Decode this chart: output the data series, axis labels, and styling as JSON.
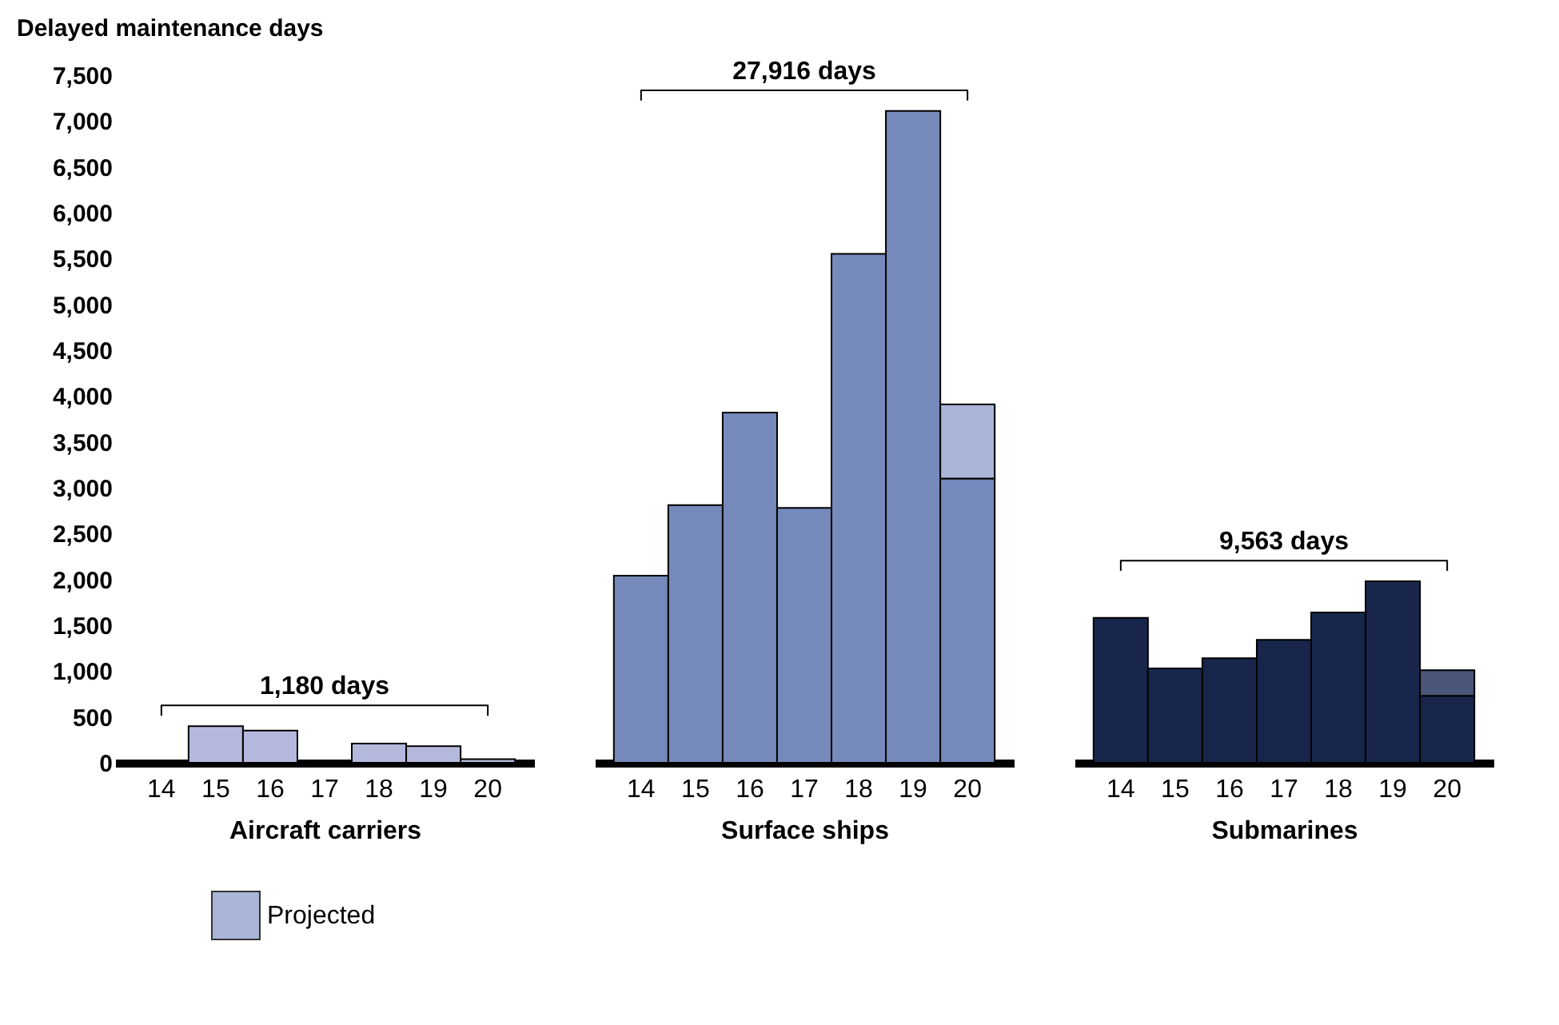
{
  "chart_data": [
    {
      "type": "bar",
      "stacked": true,
      "categories": [
        "14",
        "15",
        "16",
        "17",
        "18",
        "19",
        "20"
      ],
      "xlabel": "Aircraft carriers",
      "ylabel": "Delayed maintenance days",
      "ylim": [
        0,
        7500
      ],
      "yticks": [
        0,
        500,
        {
          "value": 1000,
          "label": "1,000"
        },
        {
          "value": 1500,
          "label": "1,500"
        },
        {
          "value": 2000,
          "label": "2,000"
        },
        {
          "value": 2500,
          "label": "2,500"
        },
        {
          "value": 3000,
          "label": "3,000"
        },
        {
          "value": 3500,
          "label": "3,500"
        },
        {
          "value": 4000,
          "label": "4,000"
        },
        {
          "value": 4500,
          "label": "4,500"
        },
        {
          "value": 5000,
          "label": "5,000"
        },
        {
          "value": 5500,
          "label": "5,500"
        },
        {
          "value": 6000,
          "label": "6,000"
        },
        {
          "value": 6500,
          "label": "6,500"
        },
        {
          "value": 7000,
          "label": "7,000"
        },
        {
          "value": 7500,
          "label": "7,500"
        }
      ],
      "grid": false,
      "annotations": [
        "1,180 days"
      ],
      "series": [
        {
          "color": "#b4b8dc",
          "values": [
            null,
            400,
            350,
            null,
            210,
            180,
            40
          ]
        }
      ]
    },
    {
      "type": "bar",
      "stacked": true,
      "categories": [
        "14",
        "15",
        "16",
        "17",
        "18",
        "19",
        "20"
      ],
      "xlabel": "Surface ships",
      "ylim": [
        0,
        7500
      ],
      "tick_labels": "x",
      "grid": false,
      "legend": "bottom left",
      "annotations": [
        "27,916 days"
      ],
      "series": [
        {
          "color": "#7689bb",
          "values": [
            2040,
            2810,
            3820,
            2780,
            5550,
            7110,
            3100
          ]
        },
        {
          "name": "Projected",
          "color": "#a9b6d8",
          "values": [
            null,
            null,
            null,
            null,
            null,
            null,
            810
          ]
        }
      ]
    },
    {
      "type": "bar",
      "stacked": true,
      "categories": [
        "14",
        "15",
        "16",
        "17",
        "18",
        "19",
        "20"
      ],
      "xlabel": "Submarines",
      "ylim": [
        0,
        7500
      ],
      "tick_labels": "x",
      "grid": false,
      "legend": false,
      "annotations": [
        "9,563 days"
      ],
      "series": [
        {
          "color": "#17264a",
          "values": [
            1580,
            1030,
            1140,
            1340,
            1640,
            1980,
            730
          ]
        },
        {
          "color": "#4a5677",
          "values": [
            null,
            null,
            null,
            null,
            null,
            null,
            280
          ]
        }
      ]
    }
  ]
}
